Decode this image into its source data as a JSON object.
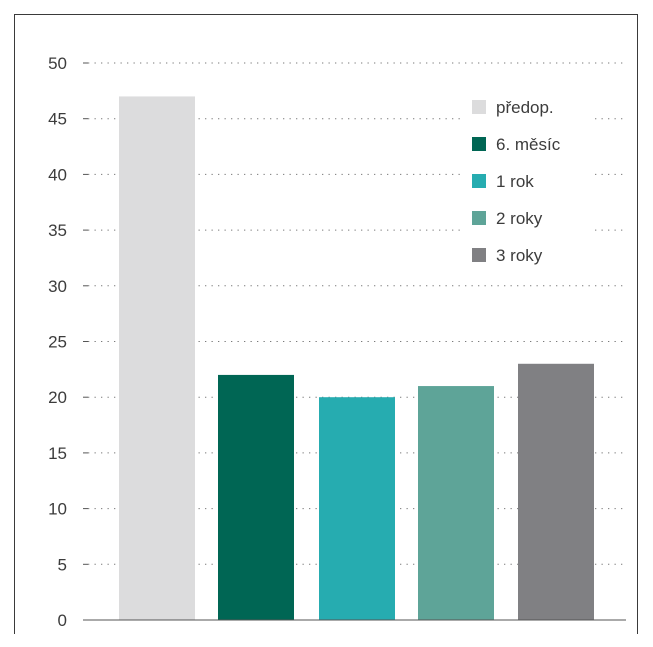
{
  "chart_data": {
    "type": "bar",
    "categories": [
      "předop.",
      "6. měsíc",
      "1 rok",
      "2 roky",
      "3 roky"
    ],
    "values": [
      47,
      22,
      20,
      21,
      23
    ],
    "colors": [
      "#dcdcdd",
      "#006654",
      "#26acb0",
      "#5ea498",
      "#808083"
    ],
    "ylim": [
      0,
      50
    ],
    "yticks": [
      0,
      5,
      10,
      15,
      20,
      25,
      30,
      35,
      40,
      45,
      50
    ],
    "grid": "horizontal-dotted",
    "legend_position": "top-right",
    "title": "",
    "xlabel": "",
    "ylabel": ""
  }
}
